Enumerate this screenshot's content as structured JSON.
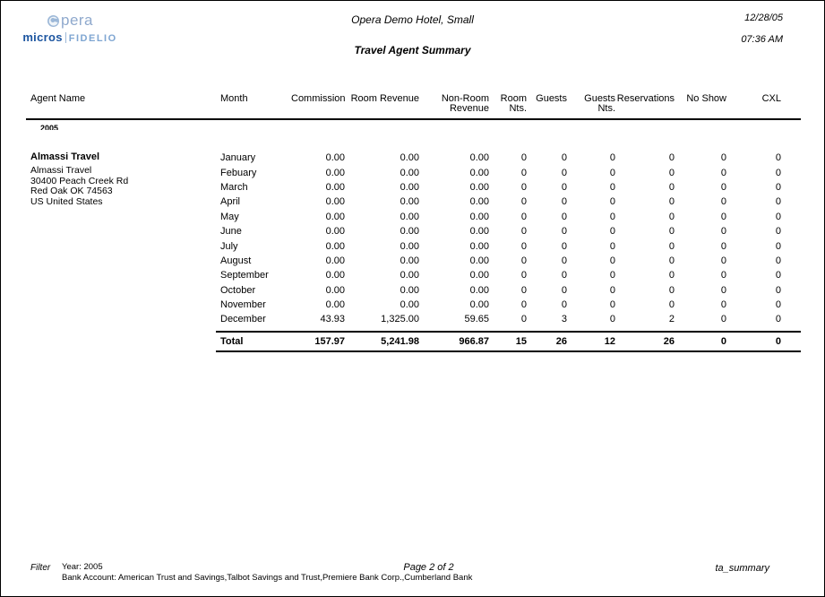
{
  "header": {
    "logo": {
      "opera_text": "pera",
      "micros_text": "micros",
      "fidelio_text": "FIDELIO",
      "opera_color": "#8fa9cd",
      "micros_color": "#1c55a0",
      "fidelio_color": "#7fa6d2"
    },
    "hotel_name": "Opera Demo Hotel, Small",
    "report_title": "Travel Agent Summary",
    "date": "12/28/05",
    "time": "07:36 AM"
  },
  "table": {
    "columns": [
      "Agent Name",
      "Month",
      "Commission",
      "Room Revenue",
      "Non-Room Revenue",
      "Room Nts.",
      "Guests",
      "Guests Nts.",
      "Reservations",
      "No Show",
      "CXL"
    ],
    "year_group": "2005",
    "agent": {
      "name": "Almassi Travel",
      "address_line1": "Almassi Travel",
      "address_line2": "30400 Peach Creek Rd",
      "address_line3": "Red Oak OK 74563",
      "address_line4": "US United States"
    },
    "rows": [
      {
        "month": "January",
        "values": [
          "0.00",
          "0.00",
          "0.00",
          "0",
          "0",
          "0",
          "0",
          "0",
          "0"
        ]
      },
      {
        "month": "Febuary",
        "values": [
          "0.00",
          "0.00",
          "0.00",
          "0",
          "0",
          "0",
          "0",
          "0",
          "0"
        ]
      },
      {
        "month": "March",
        "values": [
          "0.00",
          "0.00",
          "0.00",
          "0",
          "0",
          "0",
          "0",
          "0",
          "0"
        ]
      },
      {
        "month": "April",
        "values": [
          "0.00",
          "0.00",
          "0.00",
          "0",
          "0",
          "0",
          "0",
          "0",
          "0"
        ]
      },
      {
        "month": "May",
        "values": [
          "0.00",
          "0.00",
          "0.00",
          "0",
          "0",
          "0",
          "0",
          "0",
          "0"
        ]
      },
      {
        "month": "June",
        "values": [
          "0.00",
          "0.00",
          "0.00",
          "0",
          "0",
          "0",
          "0",
          "0",
          "0"
        ]
      },
      {
        "month": "July",
        "values": [
          "0.00",
          "0.00",
          "0.00",
          "0",
          "0",
          "0",
          "0",
          "0",
          "0"
        ]
      },
      {
        "month": "August",
        "values": [
          "0.00",
          "0.00",
          "0.00",
          "0",
          "0",
          "0",
          "0",
          "0",
          "0"
        ]
      },
      {
        "month": "September",
        "values": [
          "0.00",
          "0.00",
          "0.00",
          "0",
          "0",
          "0",
          "0",
          "0",
          "0"
        ]
      },
      {
        "month": "October",
        "values": [
          "0.00",
          "0.00",
          "0.00",
          "0",
          "0",
          "0",
          "0",
          "0",
          "0"
        ]
      },
      {
        "month": "November",
        "values": [
          "0.00",
          "0.00",
          "0.00",
          "0",
          "0",
          "0",
          "0",
          "0",
          "0"
        ]
      },
      {
        "month": "December",
        "values": [
          "43.93",
          "1,325.00",
          "59.65",
          "0",
          "3",
          "0",
          "2",
          "0",
          "0"
        ]
      }
    ],
    "total": {
      "label": "Total",
      "values": [
        "157.97",
        "5,241.98",
        "966.87",
        "15",
        "26",
        "12",
        "26",
        "0",
        "0"
      ]
    }
  },
  "footer": {
    "filter_label": "Filter",
    "filter_line1": "Year: 2005",
    "filter_line2": "Bank Account: American Trust and Savings,Talbot Savings and Trust,Premiere Bank Corp.,Cumberland Bank",
    "page_label": "Page 2 of 2",
    "report_code": "ta_summary"
  }
}
